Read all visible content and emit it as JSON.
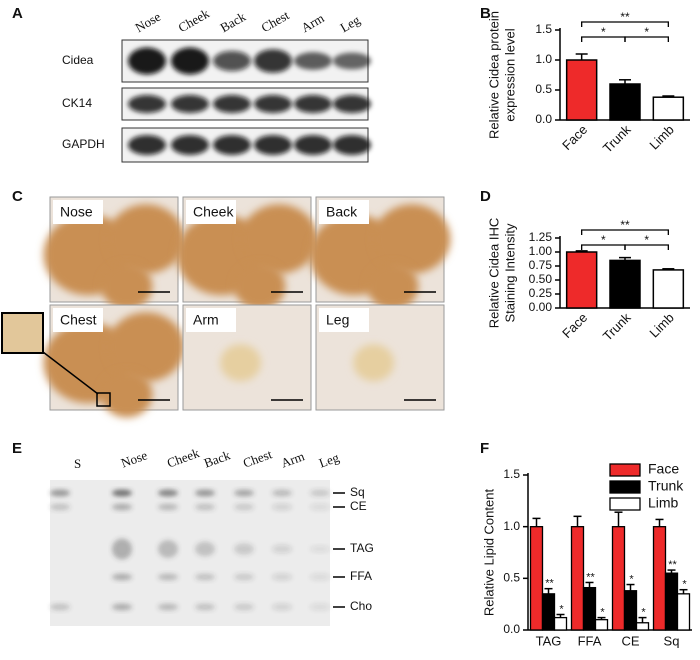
{
  "panels": {
    "A": {
      "label": "A",
      "lanes": [
        "Nose",
        "Cheek",
        "Back",
        "Chest",
        "Arm",
        "Leg"
      ],
      "rows": [
        "Cidea",
        "CK14",
        "GAPDH"
      ]
    },
    "C": {
      "label": "C",
      "tissues": [
        "Nose",
        "Cheek",
        "Back",
        "Chest",
        "Arm",
        "Leg"
      ]
    },
    "E": {
      "label": "E",
      "lanes": [
        "S",
        "Nose",
        "Cheek",
        "Back",
        "Chest",
        "Arm",
        "Leg"
      ],
      "bands": [
        "Sq",
        "CE",
        "TAG",
        "FFA",
        "Cho"
      ]
    }
  },
  "chart_data": [
    {
      "type": "bar",
      "panel_label": "B",
      "ylabel": [
        "Relative Cidea protein",
        "expression level"
      ],
      "categories": [
        "Face",
        "Trunk",
        "Limb"
      ],
      "values": [
        1.0,
        0.6,
        0.38
      ],
      "errors": [
        0.1,
        0.07,
        0.02
      ],
      "colors": [
        "#ee2a2a",
        "#000000",
        "#ffffff"
      ],
      "significance": [
        "**",
        "*",
        "*"
      ],
      "ylim": [
        0,
        1.5
      ],
      "yticks": [
        {
          "value": 0,
          "label": "0.0"
        },
        0.5,
        {
          "value": 1,
          "label": "1.0"
        },
        1.5
      ]
    },
    {
      "type": "bar",
      "panel_label": "D",
      "ylabel": [
        "Relative Cidea IHC",
        "Staining Intensity"
      ],
      "categories": [
        "Face",
        "Trunk",
        "Limb"
      ],
      "values": [
        1.0,
        0.85,
        0.68
      ],
      "errors": [
        0.02,
        0.05,
        0.02
      ],
      "colors": [
        "#ee2a2a",
        "#000000",
        "#ffffff"
      ],
      "significance": [
        "**",
        "*",
        "*"
      ],
      "ylim": [
        0,
        1.25
      ],
      "yticks": [
        {
          "value": 0,
          "label": "0.00"
        },
        0.25,
        {
          "value": 0.5,
          "label": "0.50"
        },
        0.75,
        {
          "value": 1,
          "label": "1.00"
        },
        1.25
      ]
    },
    {
      "type": "grouped_bar",
      "panel_label": "F",
      "ylabel": [
        "Relative Lipid Content"
      ],
      "categories": [
        "TAG",
        "FFA",
        "CE",
        "Sq"
      ],
      "series": [
        {
          "name": "Face",
          "color": "#ee2a2a",
          "values": [
            1.0,
            1.0,
            1.0,
            1.0
          ],
          "errors": [
            0.08,
            0.1,
            0.14,
            0.07
          ],
          "annotations": [
            null,
            null,
            null,
            null
          ]
        },
        {
          "name": "Trunk",
          "color": "#000000",
          "values": [
            0.35,
            0.41,
            0.38,
            0.55
          ],
          "errors": [
            0.05,
            0.05,
            0.06,
            0.03
          ],
          "annotations": [
            "**",
            "**",
            "*",
            "**"
          ]
        },
        {
          "name": "Limb",
          "color": "#ffffff",
          "values": [
            0.12,
            0.1,
            0.07,
            0.35
          ],
          "errors": [
            0.03,
            0.02,
            0.05,
            0.04
          ],
          "annotations": [
            "*",
            "*",
            "*",
            "*"
          ]
        }
      ],
      "legend": "upper right",
      "ylim": [
        0,
        1.5
      ],
      "yticks": [
        {
          "value": 0,
          "label": "0.0"
        },
        0.5,
        {
          "value": 1,
          "label": "1.0"
        },
        1.5
      ]
    }
  ]
}
